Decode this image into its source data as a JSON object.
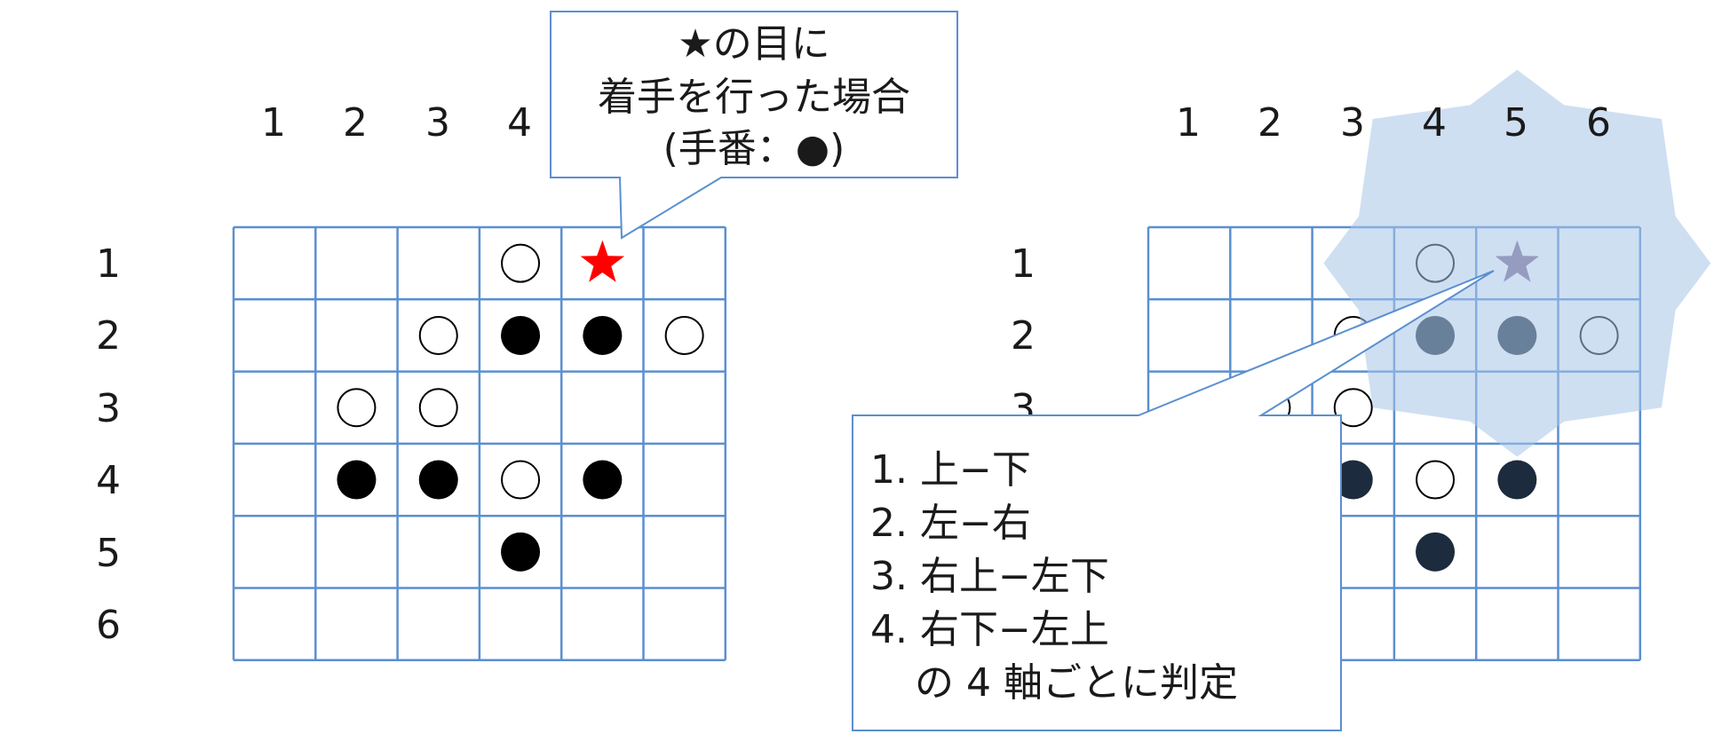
{
  "column_labels": [
    "1",
    "2",
    "3",
    "4",
    "5",
    "6"
  ],
  "row_labels": [
    "1",
    "2",
    "3",
    "4",
    "5",
    "6"
  ],
  "board": [
    [
      "",
      "",
      "",
      "W",
      "S",
      ""
    ],
    [
      "",
      "",
      "W",
      "B",
      "B",
      "W"
    ],
    [
      "",
      "W",
      "W",
      "",
      "",
      ""
    ],
    [
      "",
      "B",
      "B",
      "W",
      "B",
      ""
    ],
    [
      "",
      "",
      "",
      "B",
      "",
      ""
    ],
    [
      "",
      "",
      "",
      "",
      "",
      ""
    ]
  ],
  "left_callout": {
    "line1": "★の目に",
    "line2": "着手を行った場合",
    "line3": "(手番：●)"
  },
  "right_callout": {
    "lines": [
      "1. 上−下",
      "2. 左−右",
      "3. 右上−左下",
      "4. 右下−左上",
      "の 4 軸ごとに判定"
    ]
  },
  "colors": {
    "grid": "#5b8fd0",
    "arrow": "#a9c6e8",
    "star_left": "#ff0000",
    "star_right": "#7d6a8e",
    "stone_black": "#000000",
    "stone_black_overlaid": "#1c2b3d"
  },
  "icons": {
    "star": "star-icon",
    "black_stone": "black-stone-icon",
    "white_stone": "white-stone-icon"
  }
}
